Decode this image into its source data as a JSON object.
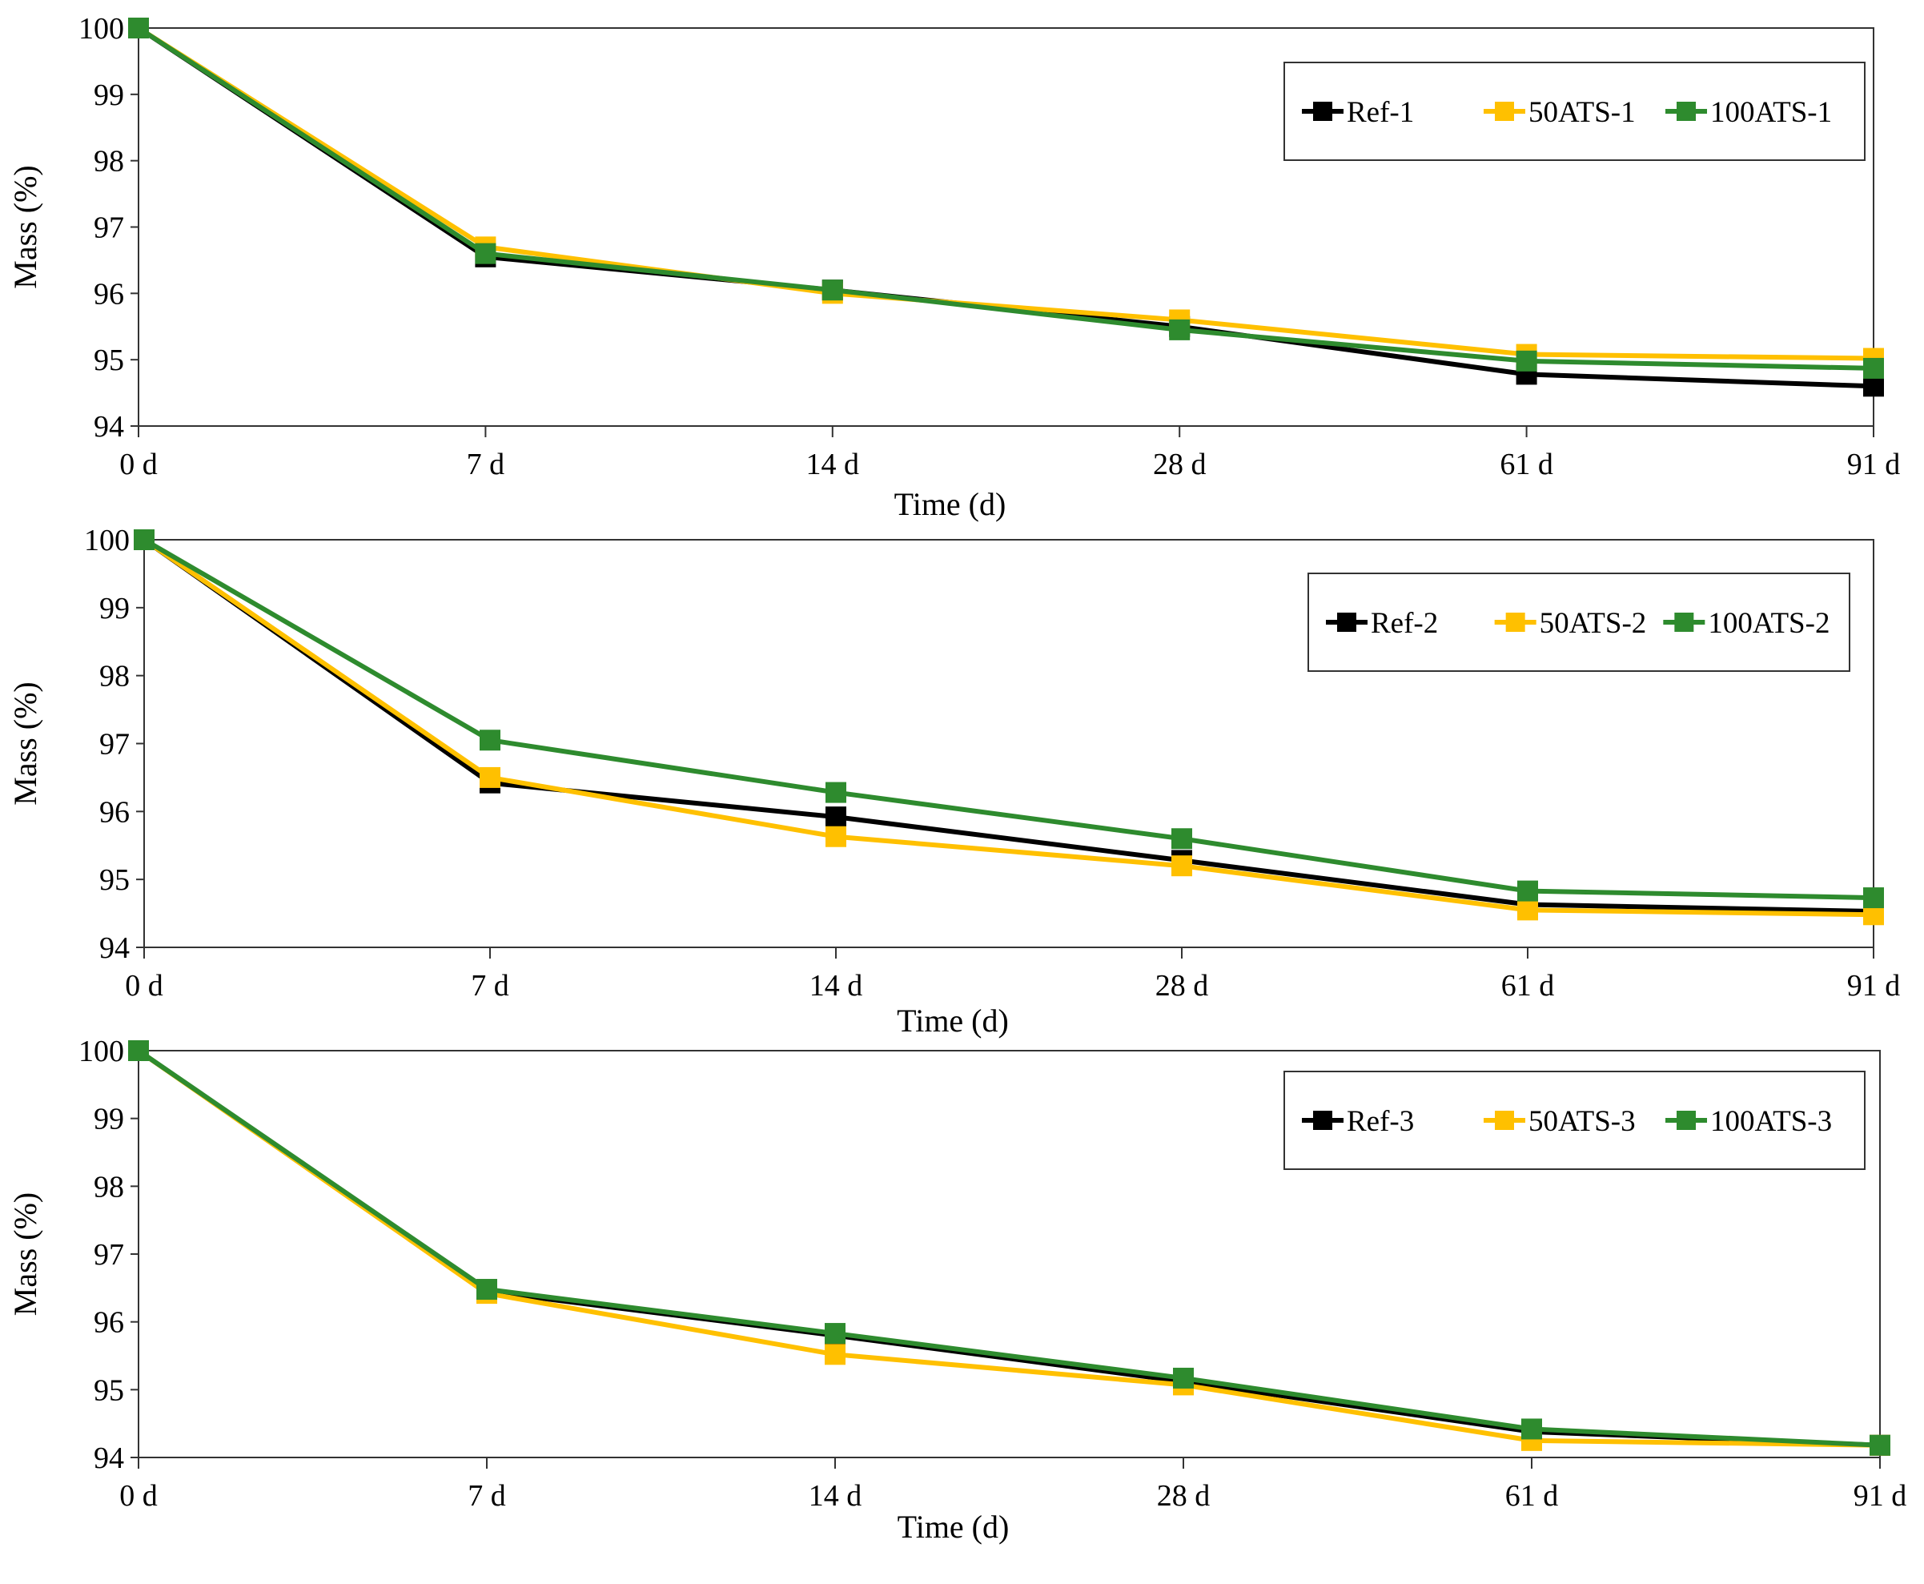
{
  "figure": {
    "colors": {
      "Ref": "#000000",
      "50ATS": "#FFC000",
      "100ATS": "#2E8B2E"
    }
  },
  "chart_data": [
    {
      "type": "line",
      "categories": [
        "0 d",
        "7 d",
        "14 d",
        "28 d",
        "61 d",
        "91 d"
      ],
      "xlabel": "Time (d)",
      "ylabel": "Mass  (%)",
      "ylim": [
        94,
        100
      ],
      "yticks": [
        "94",
        "95",
        "96",
        "97",
        "98",
        "99",
        "100"
      ],
      "legend_position": "top-right",
      "series": [
        {
          "name": "Ref-1",
          "color": "#000000",
          "values": [
            100,
            96.55,
            96.05,
            95.5,
            94.78,
            94.6
          ]
        },
        {
          "name": "50ATS-1",
          "color": "#FFC000",
          "values": [
            100,
            96.7,
            96.0,
            95.6,
            95.08,
            95.02
          ]
        },
        {
          "name": "100ATS-1",
          "color": "#2E8B2E",
          "values": [
            100,
            96.6,
            96.05,
            95.45,
            94.98,
            94.87
          ]
        }
      ]
    },
    {
      "type": "line",
      "categories": [
        "0 d",
        "7 d",
        "14 d",
        "28 d",
        "61 d",
        "91 d"
      ],
      "xlabel": "Time (d)",
      "ylabel": "Mass  (%)",
      "ylim": [
        94,
        100
      ],
      "yticks": [
        "94",
        "95",
        "96",
        "97",
        "98",
        "99",
        "100"
      ],
      "legend_position": "top-right",
      "series": [
        {
          "name": "Ref-2",
          "color": "#000000",
          "values": [
            100,
            96.42,
            95.92,
            95.28,
            94.63,
            94.53
          ]
        },
        {
          "name": "50ATS-2",
          "color": "#FFC000",
          "values": [
            100,
            96.5,
            95.63,
            95.2,
            94.55,
            94.48
          ]
        },
        {
          "name": "100ATS-2",
          "color": "#2E8B2E",
          "values": [
            100,
            97.05,
            96.28,
            95.6,
            94.83,
            94.73
          ]
        }
      ]
    },
    {
      "type": "line",
      "categories": [
        "0 d",
        "7 d",
        "14 d",
        "28 d",
        "61 d",
        "91 d"
      ],
      "xlabel": "Time (d)",
      "ylabel": "Mass (%)",
      "ylim": [
        94,
        100
      ],
      "yticks": [
        "94",
        "95",
        "96",
        "97",
        "98",
        "99",
        "100"
      ],
      "legend_position": "top-right",
      "series": [
        {
          "name": "Ref-3",
          "color": "#000000",
          "values": [
            100,
            96.45,
            95.8,
            95.12,
            94.38,
            94.18
          ]
        },
        {
          "name": "50ATS-3",
          "color": "#FFC000",
          "values": [
            100,
            96.42,
            95.52,
            95.07,
            94.25,
            94.18
          ]
        },
        {
          "name": "100ATS-3",
          "color": "#2E8B2E",
          "values": [
            100,
            96.48,
            95.83,
            95.17,
            94.42,
            94.18
          ]
        }
      ]
    }
  ]
}
